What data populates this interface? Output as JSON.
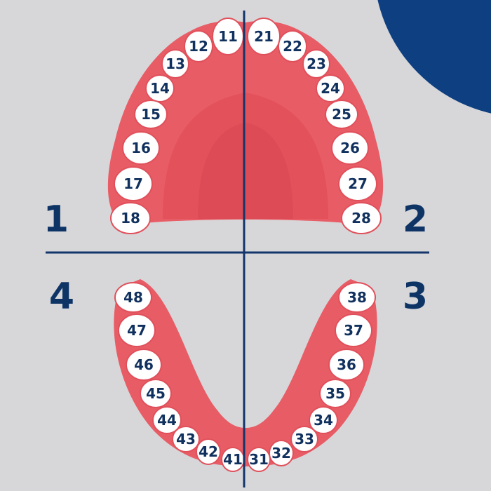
{
  "colors": {
    "background": "#d7d7d9",
    "gum": "#e85c66",
    "gum_inner": "#e2505a",
    "gum_edge": "#cf4652",
    "tooth_fill": "#ffffff",
    "tooth_stroke": "#e0505b",
    "label": "#10305e",
    "axis": "#12356b",
    "corner": "#0e3f80"
  },
  "quadrants": [
    {
      "id": "q1",
      "label": "1"
    },
    {
      "id": "q2",
      "label": "2"
    },
    {
      "id": "q3",
      "label": "3"
    },
    {
      "id": "q4",
      "label": "4"
    }
  ],
  "upper_teeth": [
    "11",
    "12",
    "13",
    "14",
    "15",
    "16",
    "17",
    "18",
    "21",
    "22",
    "23",
    "24",
    "25",
    "26",
    "27",
    "28"
  ],
  "lower_teeth": [
    "31",
    "32",
    "33",
    "34",
    "35",
    "36",
    "37",
    "38",
    "41",
    "42",
    "43",
    "44",
    "45",
    "46",
    "47",
    "48"
  ]
}
